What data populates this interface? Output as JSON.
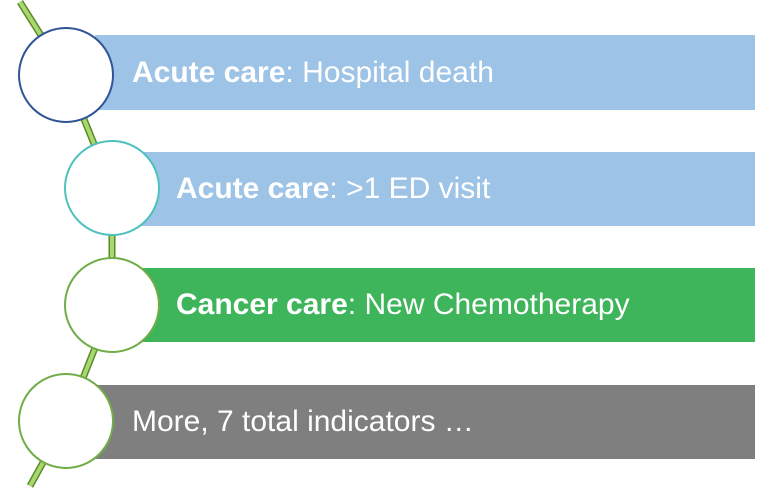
{
  "items": [
    {
      "bold": "Acute care",
      "text": ": Hospital death"
    },
    {
      "bold": "Acute care",
      "text": ": >1 ED visit"
    },
    {
      "bold": "Cancer care",
      "text": ": New Chemotherapy"
    },
    {
      "text": "More, 7 total indicators …"
    }
  ]
}
